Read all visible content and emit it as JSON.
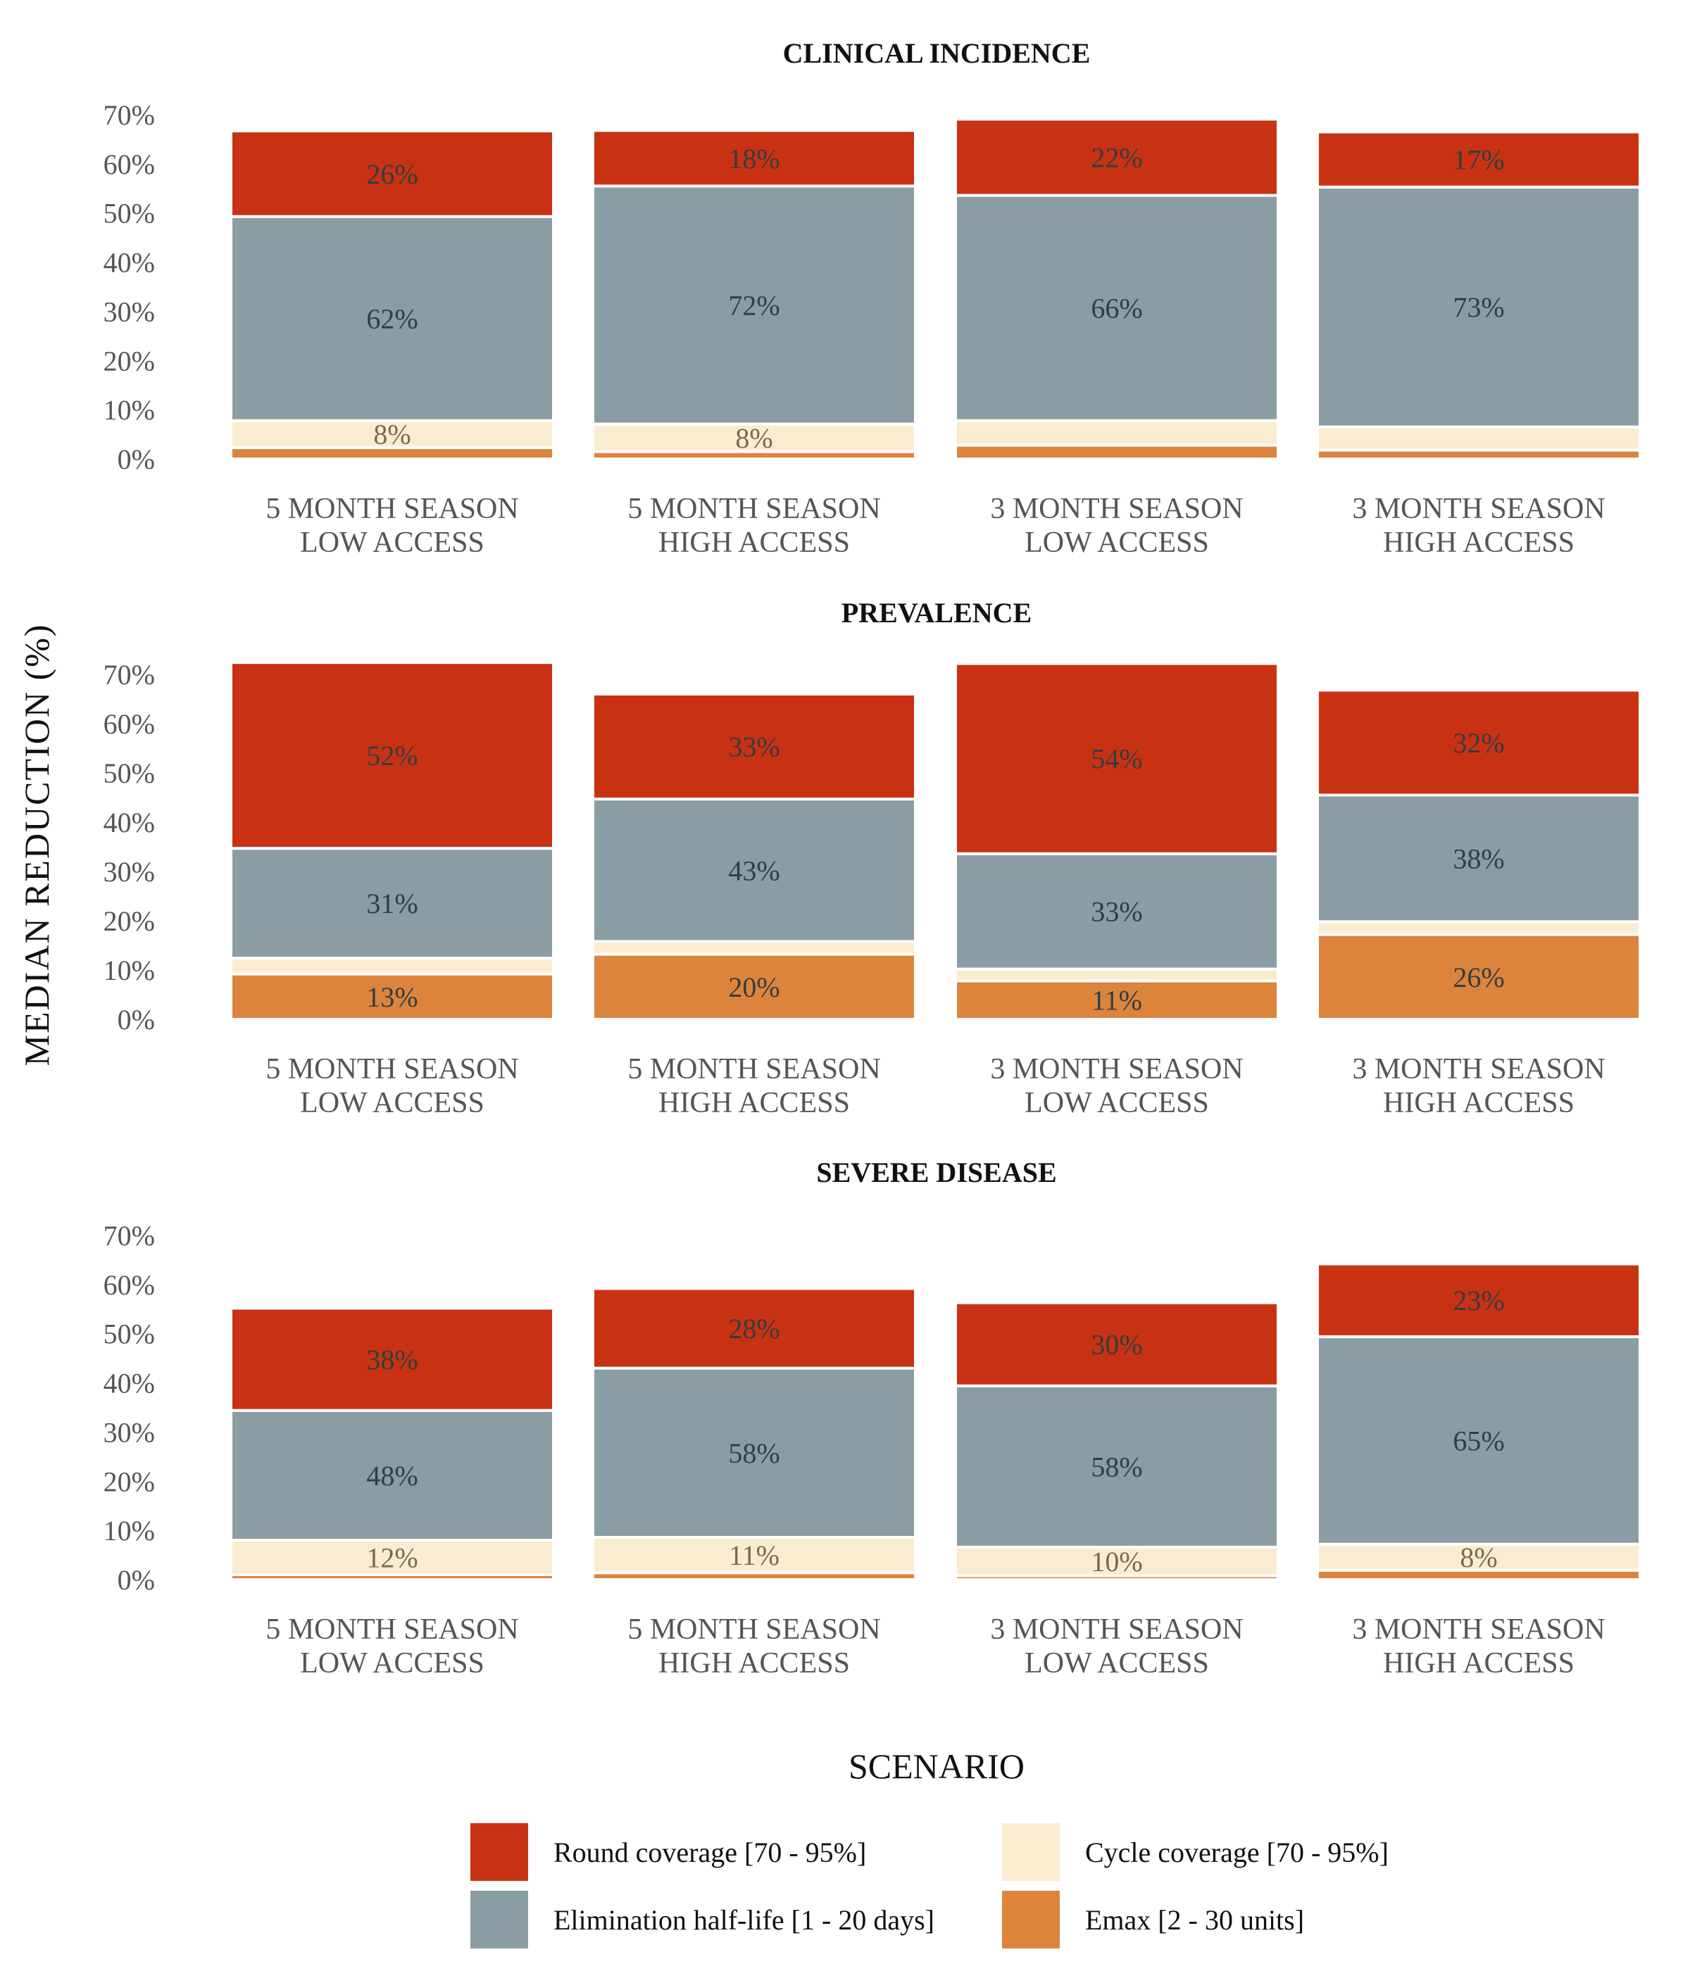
{
  "ylabel": "MEDIAN REDUCTION (%)",
  "xlabel": "SCENARIO",
  "colors": {
    "round": "#c83213",
    "halflife": "#8a9da4",
    "cycle": "#faecd0",
    "emax": "#dc843c"
  },
  "legend": [
    {
      "key": "round",
      "label": "Round coverage [70 - 95%]"
    },
    {
      "key": "cycle",
      "label": "Cycle coverage [70 - 95%]"
    },
    {
      "key": "halflife",
      "label": "Elimination half-life [1 - 20 days]"
    },
    {
      "key": "emax",
      "label": "Emax [2 - 30 units]"
    }
  ],
  "chart_data": [
    {
      "type": "bar",
      "stacked": true,
      "title": "CLINICAL INCIDENCE",
      "ylim": [
        0,
        70
      ],
      "yticks": [
        "0%",
        "10%",
        "20%",
        "30%",
        "40%",
        "50%",
        "60%",
        "70%"
      ],
      "categories": [
        [
          "5 MONTH SEASON",
          "LOW ACCESS"
        ],
        [
          "5 MONTH SEASON",
          "HIGH ACCESS"
        ],
        [
          "3 MONTH SEASON",
          "LOW ACCESS"
        ],
        [
          "3 MONTH SEASON",
          "HIGH ACCESS"
        ]
      ],
      "series": [
        {
          "key": "emax",
          "values": [
            2.3,
            1.5,
            2.8,
            1.8
          ],
          "labels": [
            "",
            "",
            "",
            ""
          ]
        },
        {
          "key": "cycle",
          "values": [
            5.5,
            5.6,
            5.0,
            4.7
          ],
          "labels": [
            "8%",
            "8%",
            "",
            ""
          ]
        },
        {
          "key": "halflife",
          "values": [
            41.5,
            48.4,
            45.8,
            48.8
          ],
          "labels": [
            "62%",
            "72%",
            "66%",
            "73%"
          ]
        },
        {
          "key": "round",
          "values": [
            17.4,
            11.3,
            15.5,
            11.2
          ],
          "labels": [
            "26%",
            "18%",
            "22%",
            "17%"
          ]
        }
      ]
    },
    {
      "type": "bar",
      "stacked": true,
      "title": "PREVALENCE",
      "ylim": [
        0,
        70
      ],
      "yticks": [
        "0%",
        "10%",
        "20%",
        "30%",
        "40%",
        "50%",
        "60%",
        "70%"
      ],
      "categories": [
        [
          "5 MONTH SEASON",
          "LOW ACCESS"
        ],
        [
          "5 MONTH SEASON",
          "HIGH ACCESS"
        ],
        [
          "3 MONTH SEASON",
          "LOW ACCESS"
        ],
        [
          "3 MONTH SEASON",
          "HIGH ACCESS"
        ]
      ],
      "series": [
        {
          "key": "emax",
          "values": [
            9.2,
            13.2,
            7.8,
            17.2
          ],
          "labels": [
            "13%",
            "20%",
            "11%",
            "26%"
          ]
        },
        {
          "key": "cycle",
          "values": [
            3.2,
            2.6,
            2.4,
            2.6
          ],
          "labels": [
            "",
            "",
            "",
            ""
          ]
        },
        {
          "key": "halflife",
          "values": [
            22.3,
            28.9,
            23.4,
            25.7
          ],
          "labels": [
            "31%",
            "43%",
            "33%",
            "38%"
          ]
        },
        {
          "key": "round",
          "values": [
            37.7,
            21.3,
            38.6,
            21.3
          ],
          "labels": [
            "52%",
            "33%",
            "54%",
            "32%"
          ]
        }
      ]
    },
    {
      "type": "bar",
      "stacked": true,
      "title": "SEVERE DISEASE",
      "ylim": [
        0,
        70
      ],
      "yticks": [
        "0%",
        "10%",
        "20%",
        "30%",
        "40%",
        "50%",
        "60%",
        "70%"
      ],
      "categories": [
        [
          "5 MONTH SEASON",
          "LOW ACCESS"
        ],
        [
          "5 MONTH SEASON",
          "HIGH ACCESS"
        ],
        [
          "3 MONTH SEASON",
          "LOW ACCESS"
        ],
        [
          "3 MONTH SEASON",
          "HIGH ACCESS"
        ]
      ],
      "series": [
        {
          "key": "emax",
          "values": [
            1.0,
            1.4,
            0.8,
            1.9
          ],
          "labels": [
            "",
            "",
            "",
            ""
          ]
        },
        {
          "key": "cycle",
          "values": [
            7.0,
            7.2,
            5.8,
            5.3
          ],
          "labels": [
            "12%",
            "11%",
            "10%",
            "8%"
          ]
        },
        {
          "key": "halflife",
          "values": [
            26.4,
            34.4,
            32.8,
            42.2
          ],
          "labels": [
            "48%",
            "58%",
            "58%",
            "65%"
          ]
        },
        {
          "key": "round",
          "values": [
            20.8,
            16.2,
            16.9,
            14.8
          ],
          "labels": [
            "38%",
            "28%",
            "30%",
            "23%"
          ]
        }
      ]
    }
  ]
}
